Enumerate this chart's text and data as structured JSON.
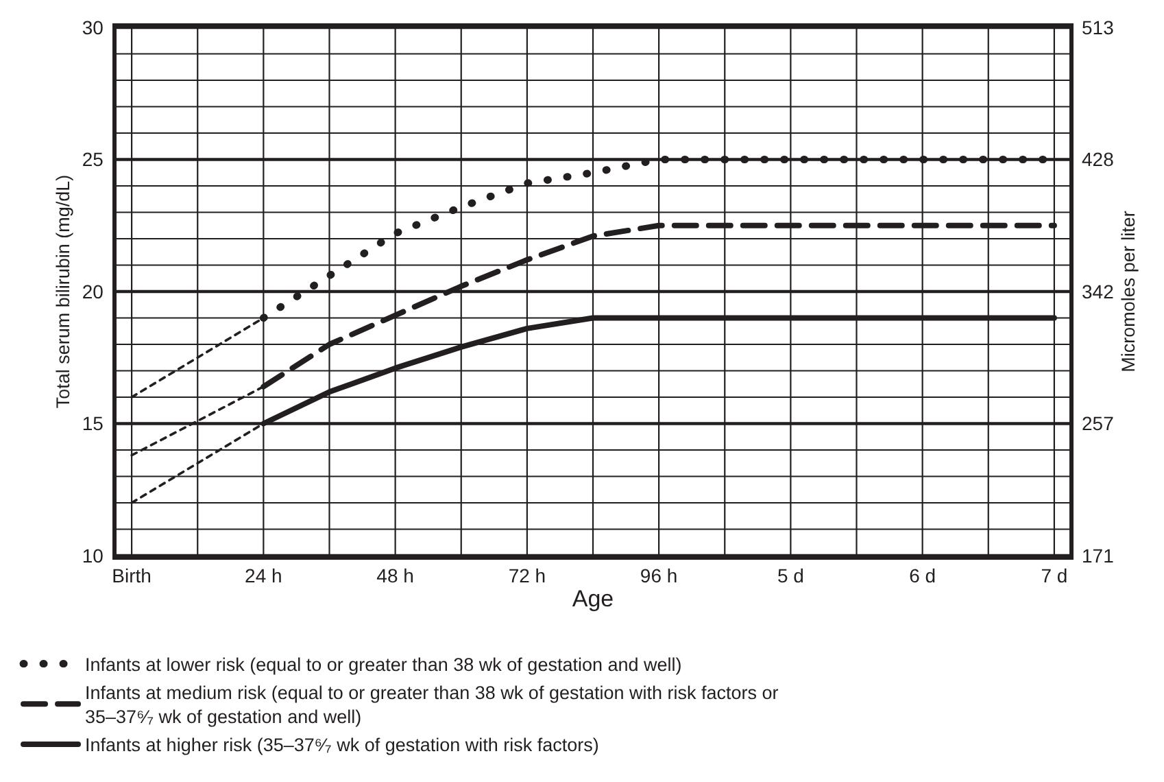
{
  "chart_data": {
    "type": "line",
    "xlabel": "Age",
    "ylabel": "Total serum bilirubin (mg/dL)",
    "y2label": "Micromoles per liter",
    "categories": [
      "Birth",
      null,
      "24 h",
      null,
      "48 h",
      null,
      "72 h",
      null,
      "96 h",
      null,
      "5 d",
      null,
      "6 d",
      null,
      "7 d"
    ],
    "ylim": [
      10,
      30
    ],
    "yticks": [
      10,
      {
        "value": 11,
        "label": null
      },
      {
        "value": 12,
        "label": null
      },
      {
        "value": 13,
        "label": null
      },
      {
        "value": 14,
        "label": null
      },
      15,
      {
        "value": 16,
        "label": null
      },
      {
        "value": 17,
        "label": null
      },
      {
        "value": 18,
        "label": null
      },
      {
        "value": 19,
        "label": null
      },
      20,
      {
        "value": 21,
        "label": null
      },
      {
        "value": 22,
        "label": null
      },
      {
        "value": 23,
        "label": null
      },
      {
        "value": 24,
        "label": null
      },
      25,
      {
        "value": 26,
        "label": null
      },
      {
        "value": 27,
        "label": null
      },
      {
        "value": 28,
        "label": null
      },
      {
        "value": 29,
        "label": null
      },
      30
    ],
    "y2lim": [
      171,
      513
    ],
    "y2ticks": [
      171,
      {
        "value": 256.5,
        "label": "257"
      },
      342,
      {
        "value": 427.5,
        "label": "428"
      },
      513
    ],
    "grid": true,
    "legend": "bottom left",
    "marker": "none",
    "series": [
      {
        "name": "Infants at lower risk (equal to or greater than 38 wk of gestation and well)",
        "color": "#231f20",
        "line_style": "dotted",
        "values": [
          null,
          null,
          19,
          20.6,
          22.2,
          23.2,
          24.1,
          24.5,
          25,
          25,
          25,
          25,
          25,
          25,
          25
        ]
      },
      {
        "name": "Infants at medium risk (equal to or greater than 38 wk of gestation with risk factors or 35–37⁶⁄₇ wk of gestation and well)",
        "color": "#231f20",
        "line_style": "dashed",
        "values": [
          null,
          null,
          16.4,
          18,
          19.1,
          20.2,
          21.2,
          22.1,
          22.5,
          22.5,
          22.5,
          22.5,
          22.5,
          22.5,
          22.5
        ]
      },
      {
        "name": "Infants at higher risk (35–37⁶⁄₇ wk of gestation with risk factors)",
        "color": "#231f20",
        "line_style": "solid",
        "values": [
          null,
          null,
          15,
          16.2,
          17.1,
          17.9,
          18.6,
          19,
          19,
          19,
          19,
          19,
          19,
          19,
          19
        ]
      },
      {
        "color": "#231f20",
        "line_style": "dashed",
        "values": [
          16,
          17.5,
          19,
          null,
          null,
          null,
          null,
          null,
          null,
          null,
          null,
          null,
          null,
          null,
          null
        ]
      },
      {
        "color": "#231f20",
        "line_style": "dashed",
        "values": [
          13.8,
          15.1,
          16.4,
          null,
          null,
          null,
          null,
          null,
          null,
          null,
          null,
          null,
          null,
          null,
          null
        ]
      },
      {
        "color": "#231f20",
        "line_style": "dashed",
        "values": [
          12,
          13.5,
          15,
          null,
          null,
          null,
          null,
          null,
          null,
          null,
          null,
          null,
          null,
          null,
          null
        ]
      }
    ]
  }
}
